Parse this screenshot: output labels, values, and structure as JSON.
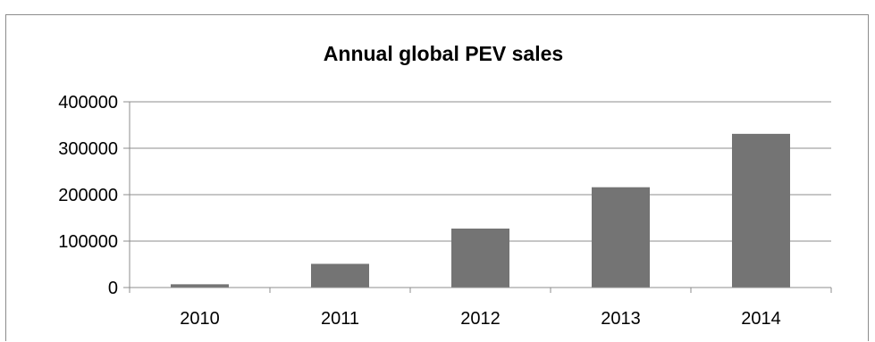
{
  "chart_data": {
    "type": "bar",
    "title": "Annual global PEV sales",
    "xlabel": "",
    "ylabel": "",
    "categories": [
      "2010",
      "2011",
      "2012",
      "2013",
      "2014"
    ],
    "values": [
      7000,
      51000,
      127000,
      216000,
      331000
    ],
    "ylim": [
      0,
      400000
    ],
    "yticks": [
      "0",
      "100000",
      "200000",
      "300000",
      "400000"
    ],
    "grid": true,
    "legend": "none",
    "colors": {
      "bar": "#747474",
      "grid": "#8c8c8c",
      "axis": "#8c8c8c"
    }
  }
}
